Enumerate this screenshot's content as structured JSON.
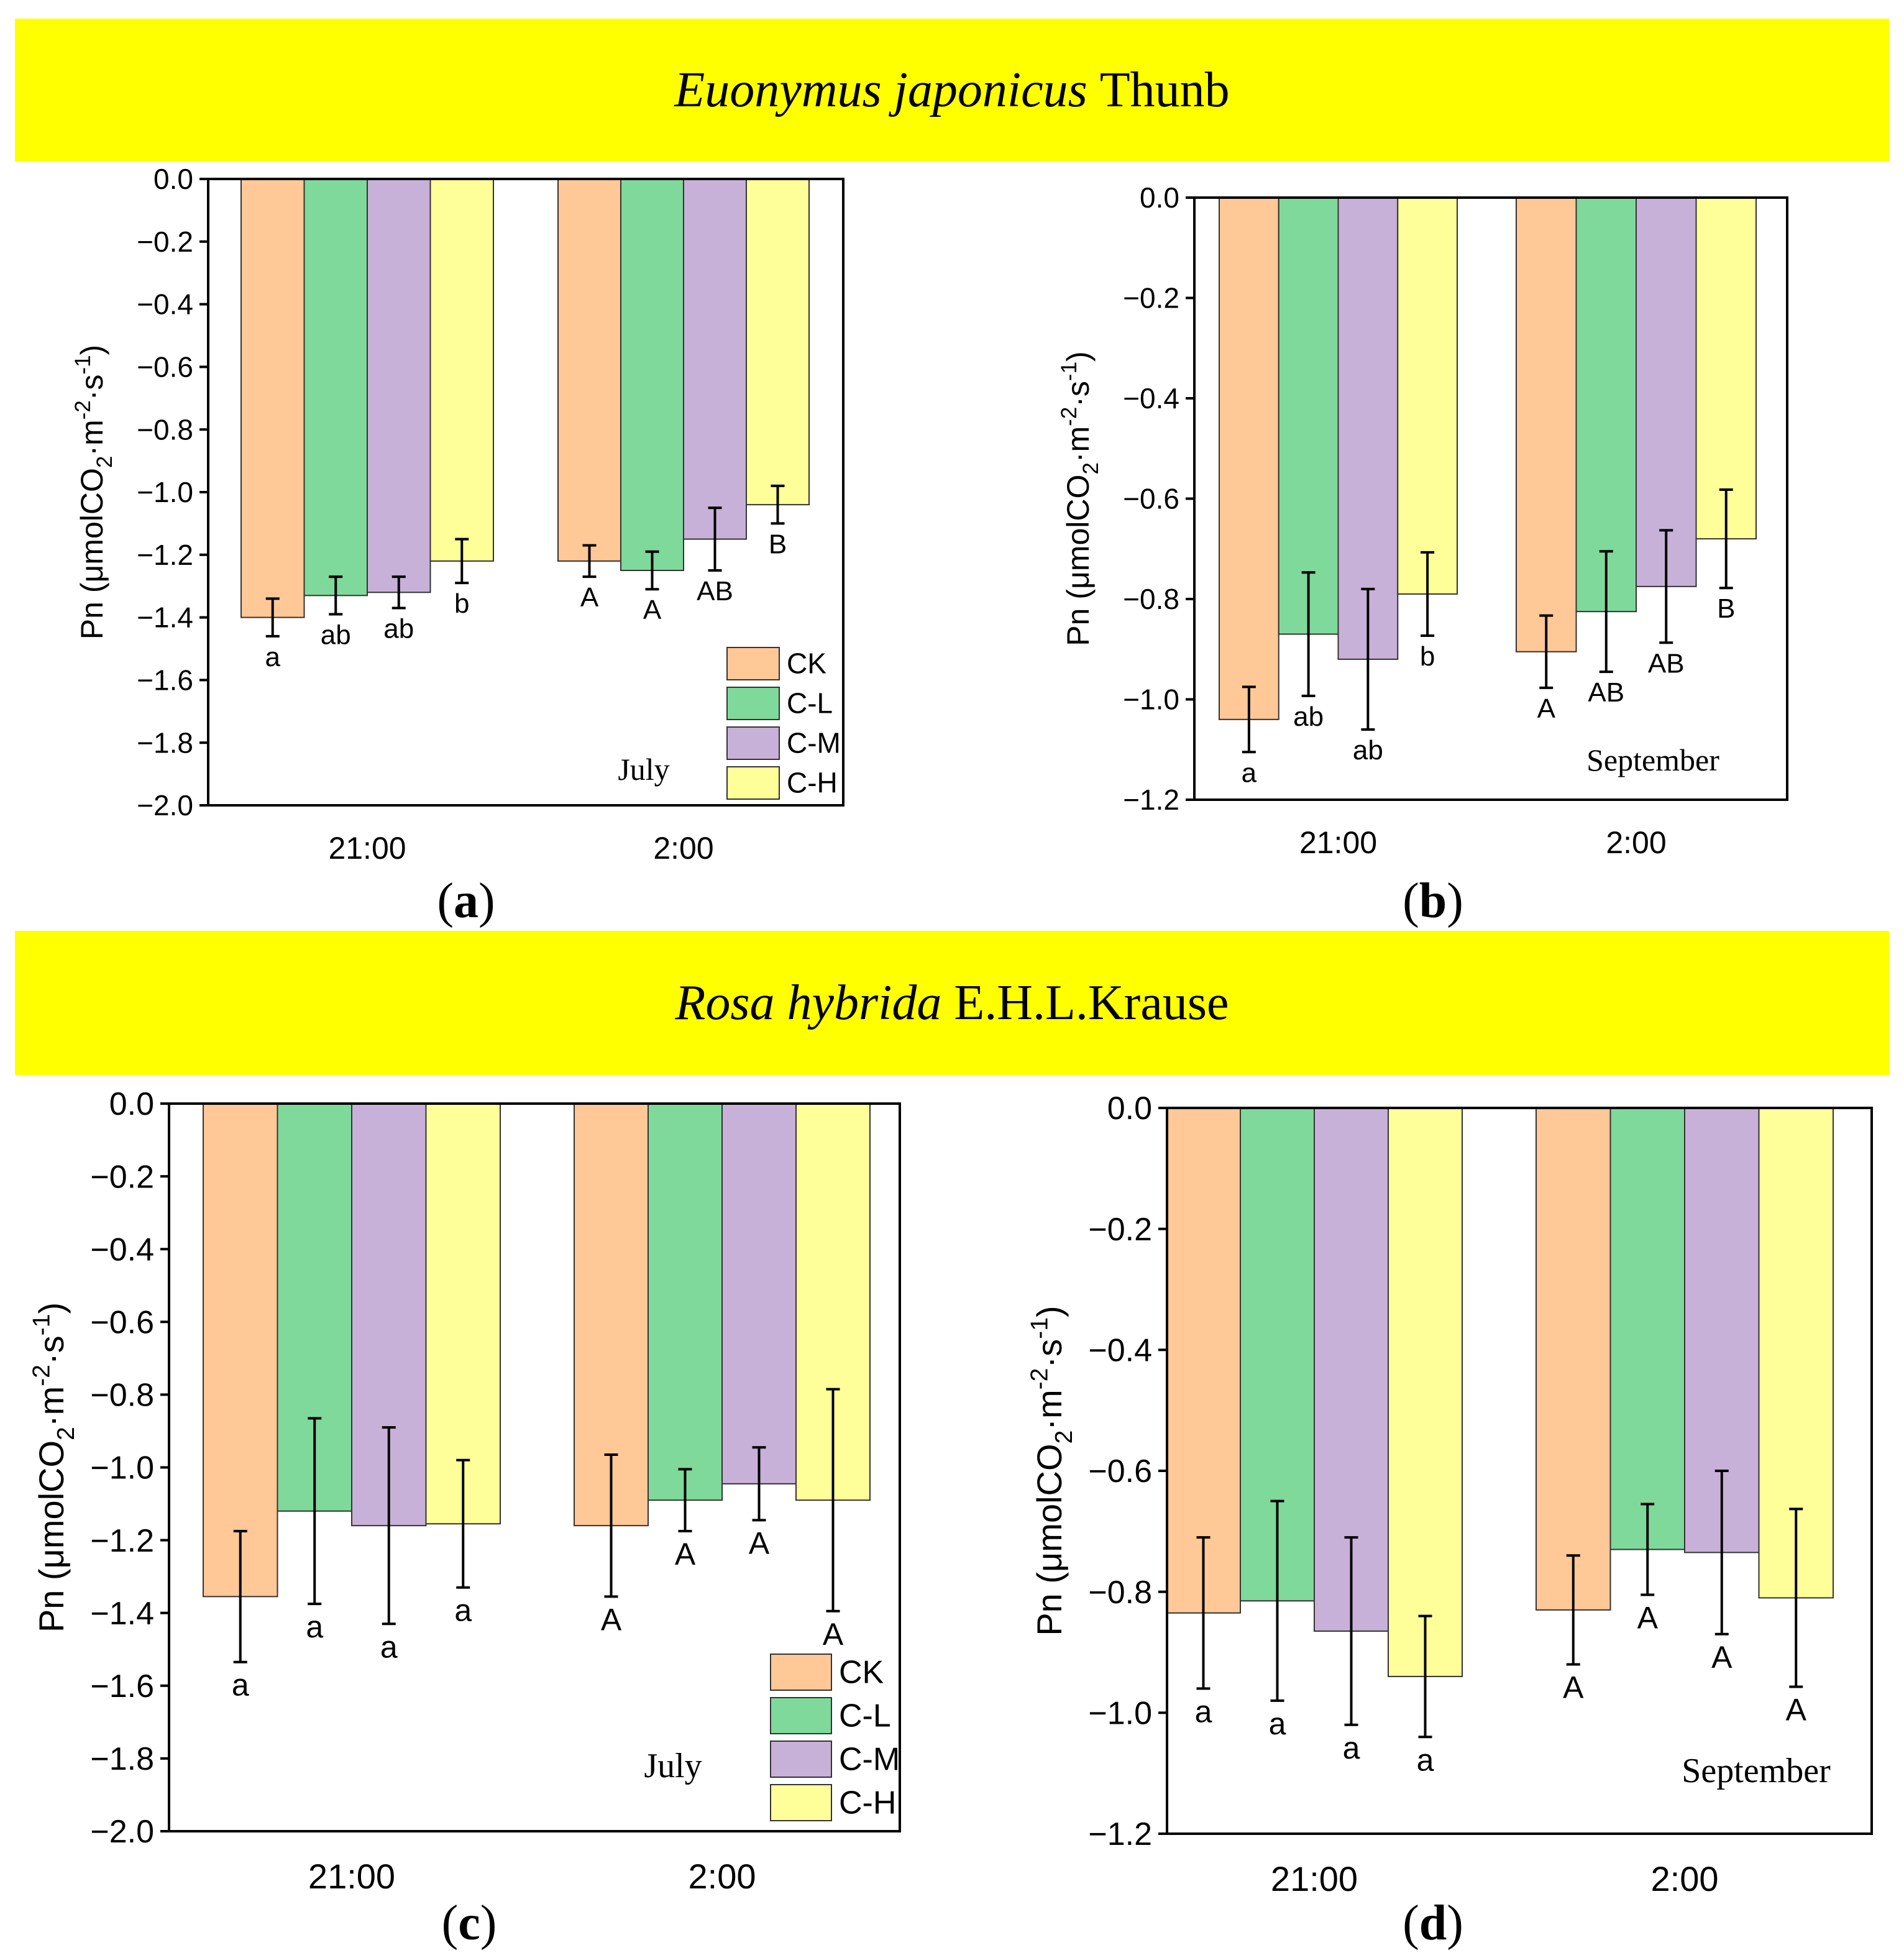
{
  "banners": [
    {
      "species": "Euonymus japonicus",
      "authority": "Thunb"
    },
    {
      "species": "Rosa hybrida",
      "authority": "E.H.L.Krause"
    }
  ],
  "panel_labels": [
    "a",
    "b",
    "c",
    "d"
  ],
  "colors": {
    "CK": "#ffc896",
    "C-L": "#7fd99a",
    "C-M": "#c8b1d8",
    "C-H": "#ffff99",
    "banner": "#ffff00"
  },
  "chart_data": [
    {
      "type": "bar",
      "panel": "a",
      "month": "July",
      "ylabel": "Pn (μmolCO2·m-2·s-1)",
      "ylim": [
        -2.0,
        0.0
      ],
      "yticks": [
        "0.0",
        "-0.2",
        "-0.4",
        "-0.6",
        "-0.8",
        "-1.0",
        "-1.2",
        "-1.4",
        "-1.6",
        "-1.8",
        "-2.0"
      ],
      "categories": [
        "21:00",
        "2:00"
      ],
      "legend": [
        "CK",
        "C-L",
        "C-M",
        "C-H"
      ],
      "series": [
        {
          "name": "CK",
          "values": [
            -1.4,
            -1.22
          ],
          "errors": [
            0.06,
            0.05
          ],
          "letters": [
            "a",
            "A"
          ]
        },
        {
          "name": "C-L",
          "values": [
            -1.33,
            -1.25
          ],
          "errors": [
            0.06,
            0.06
          ],
          "letters": [
            "ab",
            "A"
          ]
        },
        {
          "name": "C-M",
          "values": [
            -1.32,
            -1.15
          ],
          "errors": [
            0.05,
            0.1
          ],
          "letters": [
            "ab",
            "AB"
          ]
        },
        {
          "name": "C-H",
          "values": [
            -1.22,
            -1.04
          ],
          "errors": [
            0.07,
            0.06
          ],
          "letters": [
            "b",
            "B"
          ]
        }
      ]
    },
    {
      "type": "bar",
      "panel": "b",
      "month": "September",
      "ylabel": "Pn (μmolCO2·m-2·s-1)",
      "ylim": [
        -1.2,
        0.0
      ],
      "yticks": [
        "0.0",
        "-0.2",
        "-0.4",
        "-0.6",
        "-0.8",
        "-1.0",
        "-1.2"
      ],
      "categories": [
        "21:00",
        "2:00"
      ],
      "legend": [],
      "series": [
        {
          "name": "CK",
          "values": [
            -1.04,
            -0.905
          ],
          "errors": [
            0.065,
            0.072
          ],
          "letters": [
            "a",
            "A"
          ]
        },
        {
          "name": "C-L",
          "values": [
            -0.87,
            -0.825
          ],
          "errors": [
            0.123,
            0.12
          ],
          "letters": [
            "ab",
            "AB"
          ]
        },
        {
          "name": "C-M",
          "values": [
            -0.92,
            -0.775
          ],
          "errors": [
            0.14,
            0.112
          ],
          "letters": [
            "ab",
            "AB"
          ]
        },
        {
          "name": "C-H",
          "values": [
            -0.79,
            -0.68
          ],
          "errors": [
            0.083,
            0.098
          ],
          "letters": [
            "b",
            "B"
          ]
        }
      ]
    },
    {
      "type": "bar",
      "panel": "c",
      "month": "July",
      "ylabel": "Pn (μmolCO2·m-2·s-1)",
      "ylim": [
        -2.0,
        0.0
      ],
      "yticks": [
        "0.0",
        "-0.2",
        "-0.4",
        "-0.6",
        "-0.8",
        "-1.0",
        "-1.2",
        "-1.4",
        "-1.6",
        "-1.8",
        "-2.0"
      ],
      "categories": [
        "21:00",
        "2:00"
      ],
      "legend": [
        "CK",
        "C-L",
        "C-M",
        "C-H"
      ],
      "series": [
        {
          "name": "CK",
          "values": [
            -1.355,
            -1.16
          ],
          "errors": [
            0.18,
            0.195
          ],
          "letters": [
            "a",
            "A"
          ]
        },
        {
          "name": "C-L",
          "values": [
            -1.12,
            -1.09
          ],
          "errors": [
            0.255,
            0.085
          ],
          "letters": [
            "a",
            "A"
          ]
        },
        {
          "name": "C-M",
          "values": [
            -1.16,
            -1.045
          ],
          "errors": [
            0.27,
            0.1
          ],
          "letters": [
            "a",
            "A"
          ]
        },
        {
          "name": "C-H",
          "values": [
            -1.155,
            -1.09
          ],
          "errors": [
            0.175,
            0.305
          ],
          "letters": [
            "a",
            "A"
          ]
        }
      ]
    },
    {
      "type": "bar",
      "panel": "d",
      "month": "September",
      "ylabel": "Pn (μmolCO2·m-2·s-1)",
      "ylim": [
        -1.2,
        0.0
      ],
      "yticks": [
        "0.0",
        "-0.2",
        "-0.4",
        "-0.6",
        "-0.8",
        "-1.0",
        "-1.2"
      ],
      "categories": [
        "21:00",
        "2:00"
      ],
      "legend": [],
      "series": [
        {
          "name": "CK",
          "values": [
            -0.835,
            -0.83
          ],
          "errors": [
            0.125,
            0.09
          ],
          "letters": [
            "a",
            "A"
          ]
        },
        {
          "name": "C-L",
          "values": [
            -0.815,
            -0.73
          ],
          "errors": [
            0.165,
            0.075
          ],
          "letters": [
            "a",
            "A"
          ]
        },
        {
          "name": "C-M",
          "values": [
            -0.865,
            -0.735
          ],
          "errors": [
            0.155,
            0.135
          ],
          "letters": [
            "a",
            "A"
          ]
        },
        {
          "name": "C-H",
          "values": [
            -0.94,
            -0.81
          ],
          "errors": [
            0.1,
            0.147
          ],
          "letters": [
            "a",
            "A"
          ]
        }
      ]
    }
  ]
}
